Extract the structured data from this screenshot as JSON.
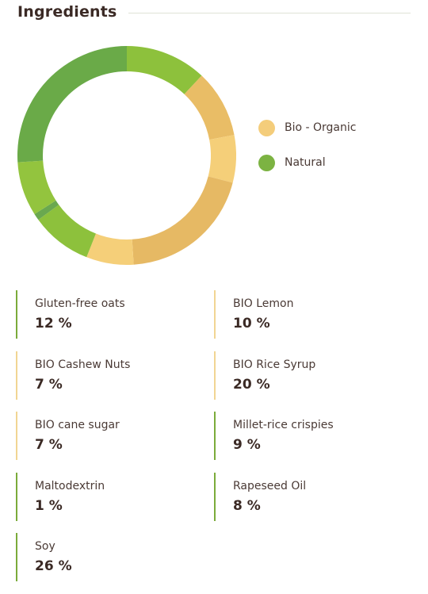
{
  "title": "Ingredients",
  "colors": {
    "organic_bar": "#f1d593",
    "natural_bar": "#7bab3a"
  },
  "chart_data": {
    "type": "pie",
    "donut": true,
    "legend_placement": "right",
    "legend": [
      {
        "label": "Bio - Organic",
        "color": "#f4cd7b"
      },
      {
        "label": "Natural",
        "color": "#7cb342"
      }
    ],
    "slices": [
      {
        "label": "Gluten-free oats",
        "value": 12,
        "value_label": "12 %",
        "group": "Natural",
        "color": "#8dc13c"
      },
      {
        "label": "BIO Lemon",
        "value": 10,
        "value_label": "10 %",
        "group": "Bio - Organic",
        "color": "#e9bd66"
      },
      {
        "label": "BIO Cashew Nuts",
        "value": 7,
        "value_label": "7 %",
        "group": "Bio - Organic",
        "color": "#f5cf79"
      },
      {
        "label": "BIO Rice Syrup",
        "value": 20,
        "value_label": "20 %",
        "group": "Bio - Organic",
        "color": "#e6b964"
      },
      {
        "label": "BIO cane sugar",
        "value": 7,
        "value_label": "7 %",
        "group": "Bio - Organic",
        "color": "#f5cf79"
      },
      {
        "label": "Millet-rice crispies",
        "value": 9,
        "value_label": "9 %",
        "group": "Natural",
        "color": "#8dc13c"
      },
      {
        "label": "Maltodextrin",
        "value": 1,
        "value_label": "1 %",
        "group": "Natural",
        "color": "#6aa84f"
      },
      {
        "label": "Rapeseed Oil",
        "value": 8,
        "value_label": "8 %",
        "group": "Natural",
        "color": "#93c43e"
      },
      {
        "label": "Soy",
        "value": 26,
        "value_label": "26 %",
        "group": "Natural",
        "color": "#6aaa48"
      }
    ]
  }
}
